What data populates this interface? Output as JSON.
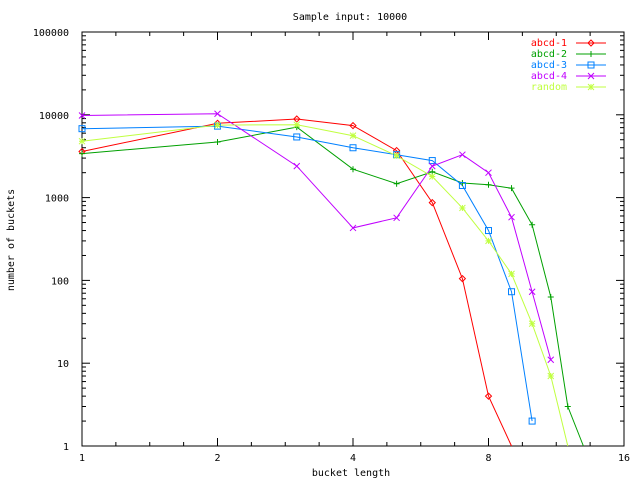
{
  "chart_data": {
    "type": "line",
    "title": "Sample input: 10000",
    "xlabel": "bucket length",
    "ylabel": "number of buckets",
    "xscale": "log2",
    "yscale": "log10",
    "xlim": [
      1,
      16
    ],
    "ylim": [
      1,
      100000
    ],
    "xticks": [
      1,
      2,
      4,
      8,
      16
    ],
    "xtick_labels": [
      "1",
      "2",
      "4",
      "8",
      "16"
    ],
    "yticks": [
      1,
      10,
      100,
      1000,
      10000,
      100000
    ],
    "ytick_labels": [
      "1",
      "10",
      "100",
      "1000",
      "10000",
      "100000"
    ],
    "grid": false,
    "legend_position": "top-right",
    "series": [
      {
        "name": "abcd-1",
        "color": "#ff0000",
        "marker": "diamond",
        "x": [
          1,
          2,
          3,
          4,
          5,
          6,
          7,
          8,
          9
        ],
        "y": [
          3600,
          7900,
          8900,
          7400,
          3700,
          870,
          105,
          4,
          1
        ]
      },
      {
        "name": "abcd-2",
        "color": "#00a000",
        "marker": "plus",
        "x": [
          1,
          2,
          3,
          4,
          5,
          6,
          7,
          8,
          9,
          10,
          11,
          12,
          13
        ],
        "y": [
          3400,
          4700,
          7100,
          2200,
          1470,
          2050,
          1500,
          1430,
          1300,
          470,
          63,
          3,
          1
        ]
      },
      {
        "name": "abcd-3",
        "color": "#0080ff",
        "marker": "square",
        "x": [
          1,
          2,
          3,
          4,
          5,
          6,
          7,
          8,
          9,
          10
        ],
        "y": [
          6800,
          7300,
          5400,
          4000,
          3300,
          2800,
          1400,
          400,
          73,
          2
        ]
      },
      {
        "name": "abcd-4",
        "color": "#c000ff",
        "marker": "x",
        "x": [
          1,
          2,
          3,
          4,
          5,
          6,
          7,
          8,
          9,
          10,
          11
        ],
        "y": [
          9800,
          10300,
          2400,
          430,
          570,
          2400,
          3300,
          2000,
          580,
          73,
          11
        ]
      },
      {
        "name": "random",
        "color": "#c0ff40",
        "marker": "star",
        "x": [
          1,
          2,
          3,
          4,
          5,
          6,
          7,
          8,
          9,
          10,
          11,
          12
        ],
        "y": [
          4800,
          7500,
          7600,
          5600,
          3200,
          1800,
          750,
          300,
          120,
          30,
          7,
          1
        ]
      }
    ]
  }
}
